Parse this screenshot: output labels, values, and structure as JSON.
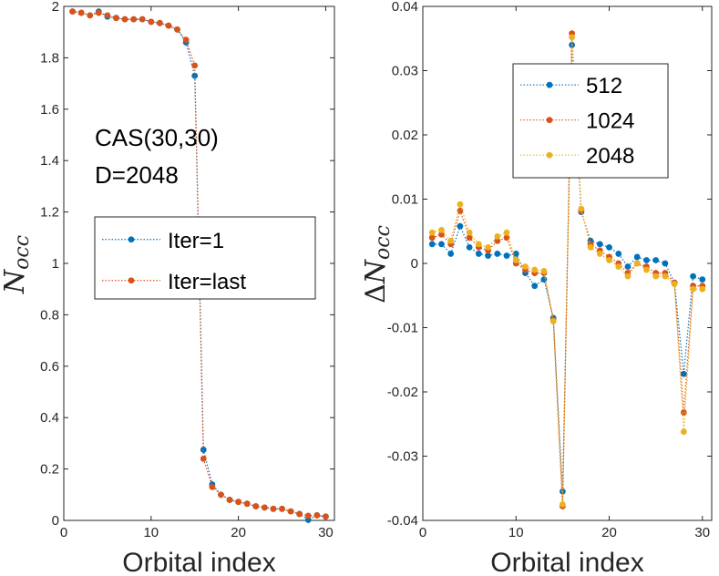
{
  "chart_data": [
    {
      "type": "line",
      "xlabel": "Orbital index",
      "ylabel_main": "N",
      "ylabel_sub": "occ",
      "xlim": [
        0,
        31
      ],
      "ylim": [
        0,
        2
      ],
      "xticks": [
        0,
        10,
        20,
        30
      ],
      "xtick_labels": [
        "0",
        "10",
        "20",
        "30"
      ],
      "yticks": [
        0,
        0.2,
        0.4,
        0.6,
        0.8,
        1,
        1.2,
        1.4,
        1.6,
        1.8,
        2
      ],
      "ytick_labels": [
        "0",
        "0.2",
        "0.4",
        "0.6",
        "0.8",
        "1",
        "1.2",
        "1.4",
        "1.6",
        "1.8",
        "2"
      ],
      "annotations": [
        "CAS(30,30)",
        "D=2048"
      ],
      "legend_position": "middle",
      "x": [
        1,
        2,
        3,
        4,
        5,
        6,
        7,
        8,
        9,
        10,
        11,
        12,
        13,
        14,
        15,
        16,
        17,
        18,
        19,
        20,
        21,
        22,
        23,
        24,
        25,
        26,
        27,
        28,
        29,
        30
      ],
      "series": [
        {
          "name": "Iter=1",
          "color": "#0072BD",
          "values": [
            1.98,
            1.975,
            1.965,
            1.98,
            1.96,
            1.955,
            1.95,
            1.95,
            1.95,
            1.94,
            1.935,
            1.925,
            1.91,
            1.86,
            1.73,
            0.275,
            0.14,
            0.1,
            0.08,
            0.072,
            0.065,
            0.055,
            0.05,
            0.045,
            0.045,
            0.035,
            0.025,
            0.002,
            0.02,
            0.015
          ]
        },
        {
          "name": "Iter=last",
          "color": "#D95319",
          "values": [
            1.98,
            1.975,
            1.965,
            1.975,
            1.965,
            1.955,
            1.95,
            1.95,
            1.95,
            1.94,
            1.935,
            1.925,
            1.91,
            1.87,
            1.77,
            0.24,
            0.13,
            0.1,
            0.08,
            0.072,
            0.065,
            0.055,
            0.05,
            0.045,
            0.045,
            0.035,
            0.025,
            0.018,
            0.02,
            0.015
          ]
        }
      ]
    },
    {
      "type": "line",
      "xlabel": "Orbital index",
      "ylabel_prefix": "Δ",
      "ylabel_main": "N",
      "ylabel_sub": "occ",
      "xlim": [
        0,
        31
      ],
      "ylim": [
        -0.04,
        0.04
      ],
      "xticks": [
        0,
        10,
        20,
        30
      ],
      "xtick_labels": [
        "0",
        "10",
        "20",
        "30"
      ],
      "yticks": [
        -0.04,
        -0.03,
        -0.02,
        -0.01,
        0,
        0.01,
        0.02,
        0.03,
        0.04
      ],
      "ytick_labels": [
        "-0.04",
        "-0.03",
        "-0.02",
        "-0.01",
        "0",
        "0.01",
        "0.02",
        "0.03",
        "0.04"
      ],
      "legend_position": "top-center",
      "x": [
        1,
        2,
        3,
        4,
        5,
        6,
        7,
        8,
        9,
        10,
        11,
        12,
        13,
        14,
        15,
        16,
        17,
        18,
        19,
        20,
        21,
        22,
        23,
        24,
        25,
        26,
        27,
        28,
        29,
        30
      ],
      "series": [
        {
          "name": "512",
          "color": "#0072BD",
          "values": [
            0.003,
            0.003,
            0.0015,
            0.0058,
            0.0025,
            0.0015,
            0.0012,
            0.0015,
            0.0012,
            0.0015,
            -0.0015,
            -0.0035,
            -0.0025,
            -0.0085,
            -0.0355,
            0.034,
            0.008,
            0.0035,
            0.003,
            0.0025,
            0.0015,
            -0.0005,
            0.001,
            0.0005,
            0.0005,
            0.0,
            -0.003,
            -0.0172,
            -0.002,
            -0.0025
          ]
        },
        {
          "name": "1024",
          "color": "#D95319",
          "values": [
            0.004,
            0.0045,
            0.003,
            0.0082,
            0.004,
            0.0025,
            0.002,
            0.0035,
            0.004,
            0.0,
            -0.001,
            -0.0015,
            -0.0015,
            -0.0088,
            -0.0378,
            0.0358,
            0.0082,
            0.003,
            0.002,
            0.001,
            0.0,
            -0.0015,
            0.0,
            -0.0005,
            -0.0015,
            -0.0015,
            -0.003,
            -0.0232,
            -0.0035,
            -0.0035
          ]
        },
        {
          "name": "2048",
          "color": "#EDB120",
          "values": [
            0.0048,
            0.0052,
            0.0035,
            0.0092,
            0.0048,
            0.003,
            0.0025,
            0.0042,
            0.0048,
            0.0005,
            -0.0005,
            -0.001,
            -0.0012,
            -0.009,
            -0.0375,
            0.0352,
            0.0085,
            0.0025,
            0.0015,
            0.0005,
            -0.0005,
            -0.002,
            0.0,
            -0.001,
            -0.002,
            -0.002,
            -0.0032,
            -0.0262,
            -0.004,
            -0.004
          ]
        }
      ]
    }
  ]
}
